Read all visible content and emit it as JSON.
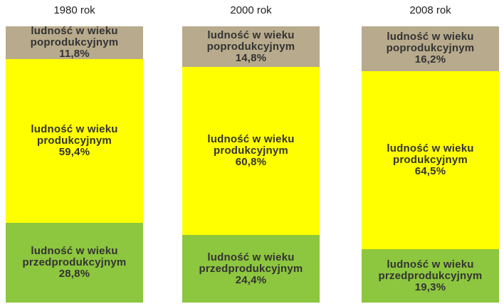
{
  "chart_data": {
    "type": "stacked_bar",
    "categories": [
      "1980 rok",
      "2000 rok",
      "2008 rok"
    ],
    "series": [
      {
        "name": "ludność w wieku przedprodukcyjnym",
        "color": "#8dc63f",
        "values": [
          28.8,
          24.4,
          19.3
        ],
        "value_labels": [
          "28,8%",
          "24,4%",
          "19,3%"
        ]
      },
      {
        "name": "ludność w wieku produkcyjnym",
        "color": "#ffff00",
        "values": [
          59.4,
          60.8,
          64.5
        ],
        "value_labels": [
          "59,4%",
          "60,8%",
          "64,5%"
        ]
      },
      {
        "name": "ludność w wieku poprodukcyjnym",
        "color": "#b8aa8c",
        "values": [
          11.8,
          14.8,
          16.2
        ],
        "value_labels": [
          "11,8%",
          "14,8%",
          "16,2%"
        ]
      }
    ]
  }
}
